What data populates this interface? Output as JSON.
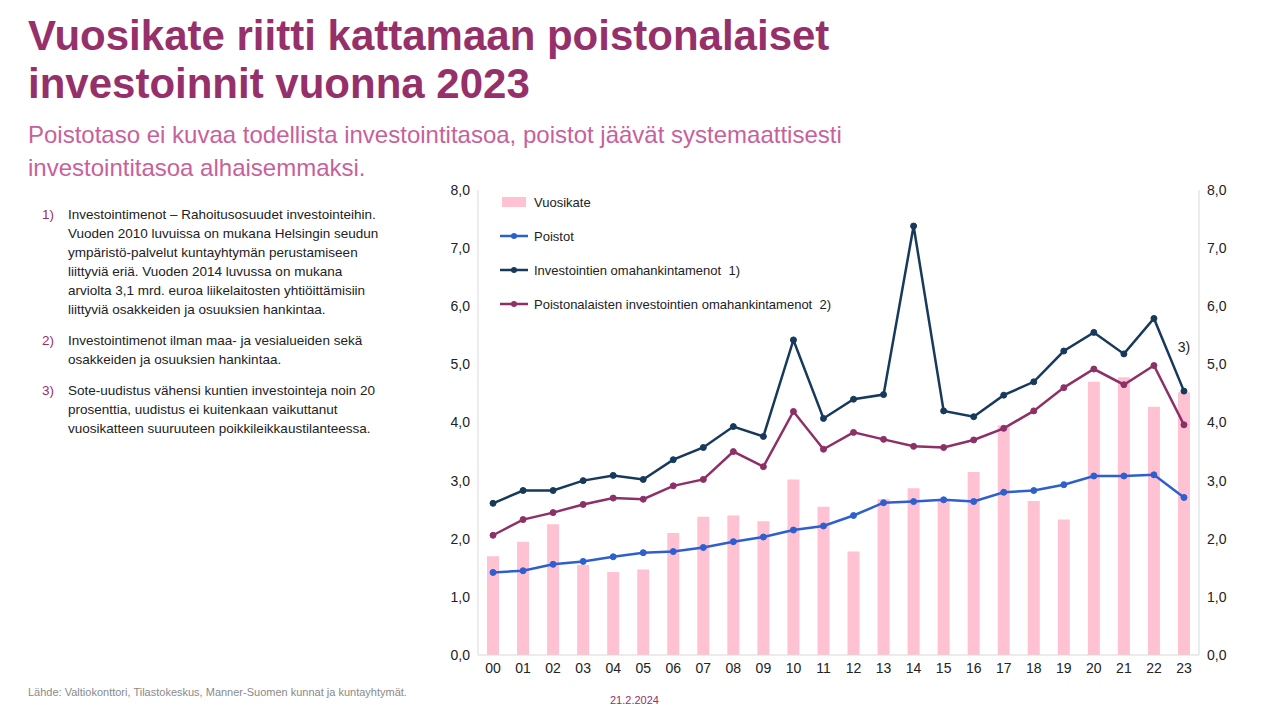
{
  "chart_data": {
    "type": "bar",
    "title": "Vuosikate riitti kattamaan poistonalaiset\ninvestoinnit vuonna 2023",
    "subtitle": "Poistotaso ei kuvaa todellista investointitasoa, poistot jäävät systemaattisesti\ninvestointitasoa alhaisemmaksi.",
    "categories": [
      "00",
      "01",
      "02",
      "03",
      "04",
      "05",
      "06",
      "07",
      "08",
      "09",
      "10",
      "11",
      "12",
      "13",
      "14",
      "15",
      "16",
      "17",
      "18",
      "19",
      "20",
      "21",
      "22",
      "23"
    ],
    "series": [
      {
        "name": "Vuosikate",
        "type": "bar",
        "color": "#ffc2d3",
        "values": [
          1.7,
          1.95,
          2.25,
          1.55,
          1.43,
          1.47,
          2.1,
          2.38,
          2.4,
          2.3,
          3.02,
          2.55,
          1.78,
          2.68,
          2.87,
          2.65,
          3.15,
          3.95,
          2.65,
          2.33,
          4.7,
          4.78,
          4.27,
          4.52
        ]
      },
      {
        "name": "Poistot",
        "type": "line",
        "marker": "circle",
        "color": "#2e5fcf",
        "values": [
          1.42,
          1.45,
          1.56,
          1.61,
          1.69,
          1.76,
          1.78,
          1.85,
          1.95,
          2.03,
          2.15,
          2.22,
          2.4,
          2.62,
          2.64,
          2.67,
          2.64,
          2.8,
          2.83,
          2.93,
          3.08,
          3.08,
          3.1,
          2.71
        ]
      },
      {
        "name": "Investointien omahankintamenot  1)",
        "type": "line",
        "marker": "circle",
        "color": "#17395b",
        "values": [
          2.61,
          2.83,
          2.83,
          3.0,
          3.09,
          3.02,
          3.36,
          3.57,
          3.93,
          3.76,
          5.42,
          4.07,
          4.4,
          4.48,
          7.38,
          4.2,
          4.1,
          4.47,
          4.7,
          5.23,
          5.55,
          5.18,
          5.79,
          4.54
        ]
      },
      {
        "name": "Poistonalaisten investointien omahankintamenot  2)",
        "type": "line",
        "marker": "circle",
        "color": "#8e3068",
        "values": [
          2.06,
          2.33,
          2.45,
          2.59,
          2.7,
          2.68,
          2.91,
          3.02,
          3.5,
          3.24,
          4.19,
          3.54,
          3.83,
          3.71,
          3.59,
          3.57,
          3.7,
          3.9,
          4.2,
          4.6,
          4.92,
          4.65,
          4.98,
          3.96
        ]
      }
    ],
    "ylim": [
      0,
      8
    ],
    "yticks": [
      {
        "value": 0,
        "label": "0,0"
      },
      {
        "value": 1,
        "label": "1,0"
      },
      {
        "value": 2,
        "label": "2,0"
      },
      {
        "value": 3,
        "label": "3,0"
      },
      {
        "value": 4,
        "label": "4,0"
      },
      {
        "value": 5,
        "label": "5,0"
      },
      {
        "value": 6,
        "label": "6,0"
      },
      {
        "value": 7,
        "label": "7,0"
      },
      {
        "value": 8,
        "label": "8,0"
      }
    ],
    "y2lim": [
      0,
      8
    ],
    "y2ticks": [
      {
        "value": 0,
        "label": "0,0"
      },
      {
        "value": 1,
        "label": "1,0"
      },
      {
        "value": 2,
        "label": "2,0"
      },
      {
        "value": 3,
        "label": "3,0"
      },
      {
        "value": 4,
        "label": "4,0"
      },
      {
        "value": 5,
        "label": "5,0"
      },
      {
        "value": 6,
        "label": "6,0"
      },
      {
        "value": 7,
        "label": "7,0"
      },
      {
        "value": 8,
        "label": "8,0"
      }
    ],
    "grid": false,
    "legend": "top-left",
    "annotations": [
      {
        "text": "3)",
        "x": "23",
        "y": 5.3
      }
    ]
  },
  "notes": [
    {
      "label": "1)",
      "text": "Investointimenot – Rahoitusosuudet investointeihin. Vuoden 2010 luvuissa on mukana Helsingin seudun ympäristö-palvelut kuntayhtymän perustamiseen liittyviä eriä. Vuoden 2014 luvussa on mukana arviolta 3,1 mrd. euroa liikelaitosten yhtiöittämisiin liittyviä osakkeiden ja osuuksien hankintaa."
    },
    {
      "label": "2)",
      "text": "Investointimenot ilman maa- ja vesialueiden sekä osakkeiden ja osuuksien hankintaa."
    },
    {
      "label": "3)",
      "text": "Sote-uudistus vähensi kuntien investointeja noin 20 prosenttia, uudistus ei kuitenkaan vaikuttanut vuosikatteen suuruuteen poikkileikkaustilanteessa."
    }
  ],
  "source": "Lähde: Valtiokonttori, Tilastokeskus, Manner-Suomen kunnat ja kuntayhtymät.",
  "date": "21.2.2024"
}
